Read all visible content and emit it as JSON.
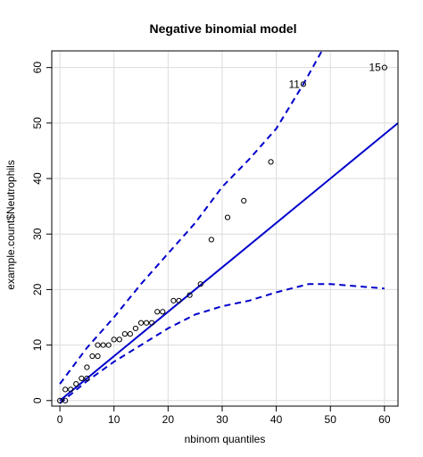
{
  "chart_data": {
    "type": "scatter",
    "title": "Negative binomial model",
    "xlabel": "nbinom quantiles",
    "ylabel": "example.count$Neutrophils",
    "xlim": [
      -1.5,
      62.5
    ],
    "ylim": [
      -1,
      63
    ],
    "x_ticks": [
      0,
      10,
      20,
      30,
      40,
      50,
      60
    ],
    "y_ticks": [
      0,
      10,
      20,
      30,
      40,
      50,
      60
    ],
    "grid": true,
    "colors": {
      "line": "#0000cc",
      "points": "#000000",
      "grid": "#dcdcdc"
    },
    "points": [
      [
        0,
        0
      ],
      [
        1,
        0
      ],
      [
        1,
        2
      ],
      [
        2,
        2
      ],
      [
        3,
        3
      ],
      [
        4,
        4
      ],
      [
        5,
        4
      ],
      [
        5,
        6
      ],
      [
        6,
        8
      ],
      [
        7,
        8
      ],
      [
        7,
        10
      ],
      [
        8,
        10
      ],
      [
        9,
        10
      ],
      [
        10,
        11
      ],
      [
        11,
        11
      ],
      [
        12,
        12
      ],
      [
        13,
        12
      ],
      [
        14,
        13
      ],
      [
        15,
        14
      ],
      [
        16,
        14
      ],
      [
        17,
        14
      ],
      [
        18,
        16
      ],
      [
        19,
        16
      ],
      [
        21,
        18
      ],
      [
        22,
        18
      ],
      [
        24,
        19
      ],
      [
        26,
        21
      ],
      [
        28,
        29
      ],
      [
        31,
        33
      ],
      [
        34,
        36
      ],
      [
        39,
        43
      ],
      [
        45,
        57
      ],
      [
        60,
        60
      ]
    ],
    "reference_line": {
      "x": [
        0,
        62.5
      ],
      "y": [
        0,
        50
      ]
    },
    "upper_band": {
      "x": [
        0,
        5,
        10,
        15,
        20,
        25,
        30,
        35,
        40,
        45,
        49
      ],
      "y": [
        3,
        9.5,
        15,
        21,
        26.5,
        32,
        38.5,
        43.5,
        49,
        57,
        64
      ]
    },
    "lower_band": {
      "x": [
        0,
        5,
        10,
        15,
        20,
        25,
        30,
        35,
        40,
        46,
        50,
        60
      ],
      "y": [
        -0.5,
        3.5,
        7,
        10,
        13,
        15.5,
        17,
        18,
        19.5,
        21,
        21,
        20.2
      ]
    },
    "annotations": [
      {
        "label": "11",
        "x": 45,
        "y": 57,
        "side": "left"
      },
      {
        "label": "15",
        "x": 60,
        "y": 60,
        "side": "left"
      }
    ]
  }
}
